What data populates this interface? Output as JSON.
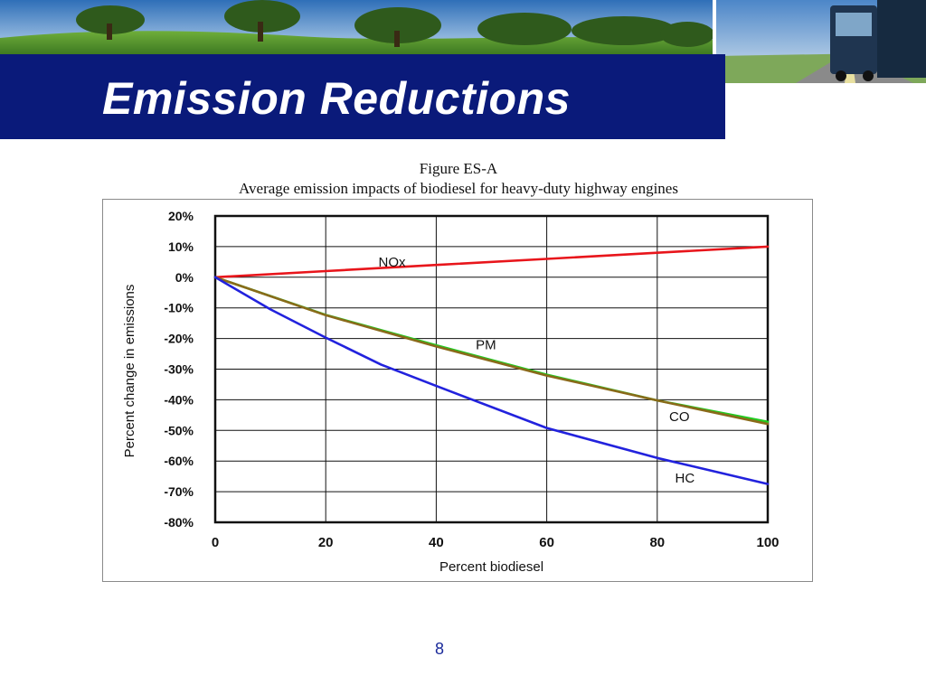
{
  "slide": {
    "title": "Emission Reductions",
    "page_number": "8",
    "title_bar_color": "#0a1a7a"
  },
  "chart_data": {
    "type": "line",
    "figure_label": "Figure ES-A",
    "title": "Average emission impacts of biodiesel for heavy-duty highway engines",
    "xlabel": "Percent biodiesel",
    "ylabel": "Percent change in emissions",
    "xlim": [
      0,
      100
    ],
    "ylim": [
      -80,
      20
    ],
    "x_ticks": [
      "0",
      "20",
      "40",
      "60",
      "80",
      "100"
    ],
    "y_ticks": [
      "20%",
      "10%",
      "0%",
      "-10%",
      "-20%",
      "-30%",
      "-40%",
      "-50%",
      "-60%",
      "-70%",
      "-80%"
    ],
    "grid": true,
    "legend": "none",
    "series": [
      {
        "name": "NOx",
        "color": "#e8151b",
        "x": [
          0,
          20,
          40,
          60,
          80,
          100
        ],
        "values": [
          0,
          2,
          4,
          6,
          8,
          10
        ]
      },
      {
        "name": "PM",
        "color": "#22cc22",
        "x": [
          0,
          20,
          40,
          60,
          80,
          100
        ],
        "values": [
          0,
          -12.3,
          -22.2,
          -31.8,
          -40.2,
          -47.2
        ]
      },
      {
        "name": "CO",
        "color": "#8a6a1a",
        "x": [
          0,
          20,
          40,
          60,
          80,
          100
        ],
        "values": [
          0,
          -12.4,
          -22.6,
          -32.1,
          -40.2,
          -47.9
        ]
      },
      {
        "name": "HC",
        "color": "#2222dd",
        "x": [
          0,
          10,
          20,
          30,
          40,
          60,
          80,
          100
        ],
        "values": [
          0,
          -10.5,
          -19.7,
          -28.5,
          -35.5,
          -49.2,
          -59,
          -67.5
        ]
      }
    ],
    "annotations": [
      {
        "text": "NOx",
        "x": 32,
        "y": 5
      },
      {
        "text": "PM",
        "x": 49,
        "y": -22
      },
      {
        "text": "CO",
        "x": 84,
        "y": -45.5
      },
      {
        "text": "HC",
        "x": 85,
        "y": -65.5
      }
    ]
  }
}
